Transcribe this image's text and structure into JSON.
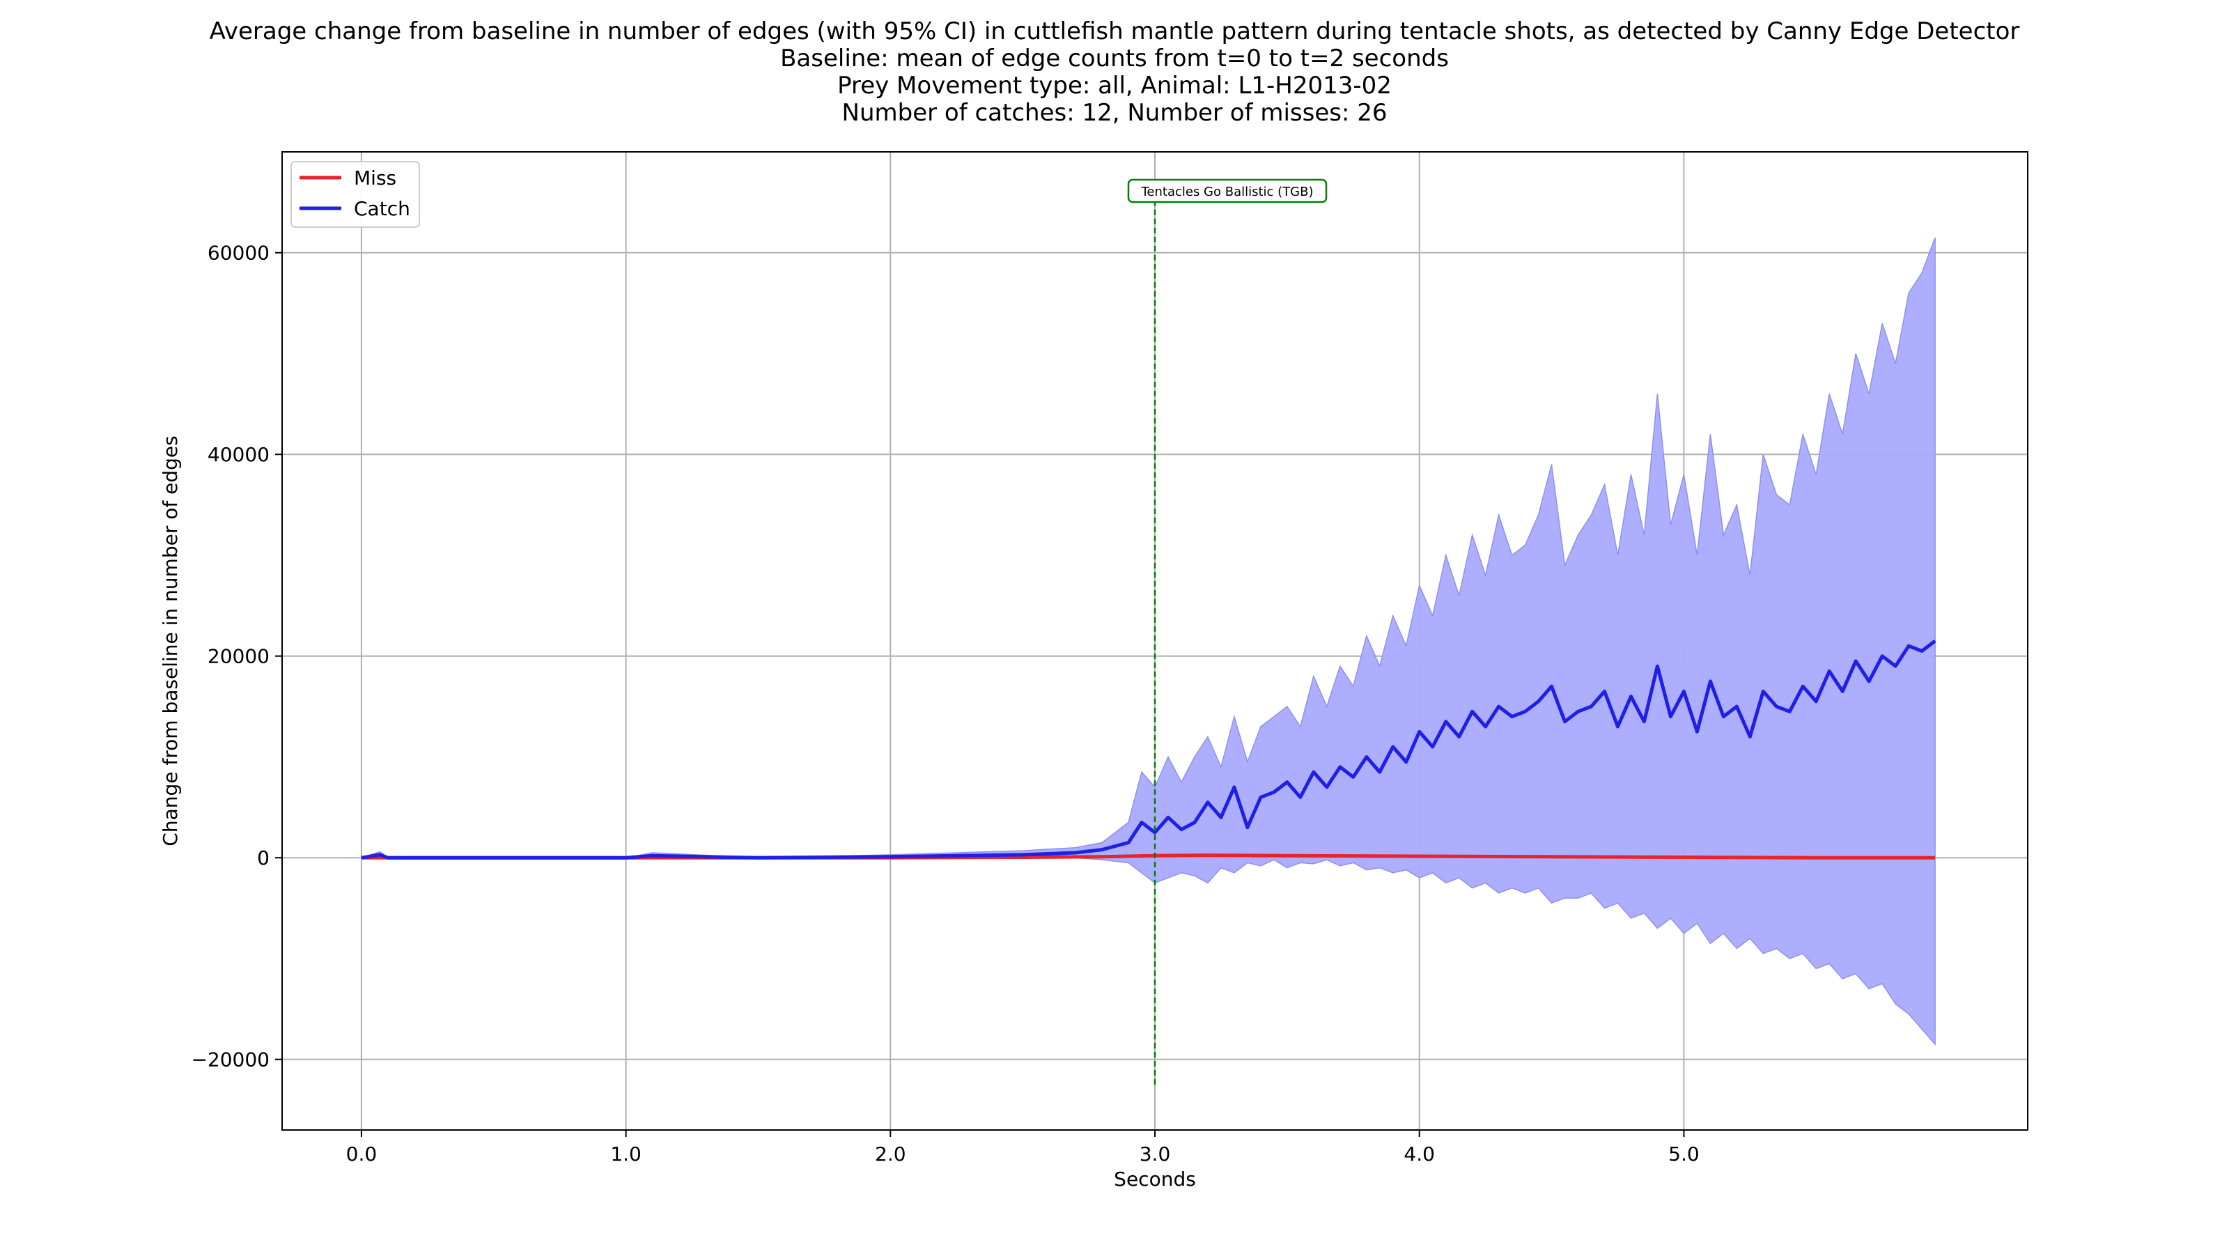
{
  "chart_data": {
    "type": "line",
    "title_lines": [
      "Average change from baseline in number of edges (with 95% CI) in cuttlefish mantle pattern during tentacle shots, as detected by Canny Edge Detector",
      "Baseline: mean of edge counts from t=0 to t=2 seconds",
      "Prey Movement type: all, Animal: L1-H2013-02",
      "Number of catches: 12, Number of misses: 26"
    ],
    "xlabel": "Seconds",
    "ylabel": "Change from baseline in number of edges",
    "xlim": [
      -0.3,
      6.3
    ],
    "ylim": [
      -27000,
      70000
    ],
    "x_ticks": [
      0,
      1,
      2,
      3,
      4,
      5
    ],
    "x_tick_labels": [
      "0.0",
      "1.0",
      "2.0",
      "3.0",
      "4.0",
      "5.0"
    ],
    "y_ticks": [
      -20000,
      0,
      20000,
      40000,
      60000
    ],
    "y_tick_labels": [
      "−20000",
      "0",
      "20000",
      "40000",
      "60000"
    ],
    "grid": true,
    "legend_position": "top-left",
    "annotation": {
      "text": "Tentacles Go Ballistic (TGB)",
      "x": 3.0,
      "line_ymin": -22500,
      "line_ymax": 66000,
      "color": "#008000"
    },
    "series": [
      {
        "name": "Miss",
        "color": "#e8232a",
        "x": [
          0,
          0.5,
          1.0,
          1.5,
          2.0,
          2.5,
          2.8,
          3.0,
          3.2,
          3.5,
          4.0,
          4.5,
          5.0,
          5.5,
          5.95
        ],
        "values": [
          0,
          0,
          0,
          0,
          0,
          50,
          100,
          200,
          250,
          200,
          150,
          100,
          50,
          0,
          0
        ]
      },
      {
        "name": "Catch",
        "color": "#1f1fe6",
        "band_color": "#aaaaff",
        "x": [
          0,
          0.07,
          0.1,
          0.5,
          1.0,
          1.1,
          1.5,
          2.0,
          2.5,
          2.7,
          2.8,
          2.9,
          2.95,
          3.0,
          3.05,
          3.1,
          3.15,
          3.2,
          3.25,
          3.3,
          3.35,
          3.4,
          3.45,
          3.5,
          3.55,
          3.6,
          3.65,
          3.7,
          3.75,
          3.8,
          3.85,
          3.9,
          3.95,
          4.0,
          4.05,
          4.1,
          4.15,
          4.2,
          4.25,
          4.3,
          4.35,
          4.4,
          4.45,
          4.5,
          4.55,
          4.6,
          4.65,
          4.7,
          4.75,
          4.8,
          4.85,
          4.9,
          4.95,
          5.0,
          5.05,
          5.1,
          5.15,
          5.2,
          5.25,
          5.3,
          5.35,
          5.4,
          5.45,
          5.5,
          5.55,
          5.6,
          5.65,
          5.7,
          5.75,
          5.8,
          5.85,
          5.9,
          5.95
        ],
        "values": [
          0,
          300,
          0,
          0,
          0,
          200,
          0,
          100,
          300,
          500,
          800,
          1500,
          3500,
          2500,
          4000,
          2800,
          3500,
          5500,
          4000,
          7000,
          3000,
          6000,
          6500,
          7500,
          6000,
          8500,
          7000,
          9000,
          8000,
          10000,
          8500,
          11000,
          9500,
          12500,
          11000,
          13500,
          12000,
          14500,
          13000,
          15000,
          14000,
          14500,
          15500,
          17000,
          13500,
          14500,
          15000,
          16500,
          13000,
          16000,
          13500,
          19000,
          14000,
          16500,
          12500,
          17500,
          14000,
          15000,
          12000,
          16500,
          15000,
          14500,
          17000,
          15500,
          18500,
          16500,
          19500,
          17500,
          20000,
          19000,
          21000,
          20500,
          21500
        ],
        "ci_lower": [
          0,
          0,
          0,
          0,
          0,
          0,
          0,
          0,
          0,
          0,
          -200,
          -500,
          -1500,
          -2500,
          -2000,
          -1500,
          -1800,
          -2500,
          -1000,
          -1500,
          -500,
          -800,
          -200,
          -1000,
          -500,
          -600,
          -200,
          -800,
          -500,
          -1200,
          -1000,
          -1500,
          -1200,
          -2000,
          -1500,
          -2500,
          -2000,
          -3000,
          -2500,
          -3500,
          -3000,
          -3500,
          -3000,
          -4500,
          -4000,
          -4000,
          -3500,
          -5000,
          -4500,
          -6000,
          -5500,
          -7000,
          -6000,
          -7500,
          -6500,
          -8500,
          -7500,
          -9000,
          -8000,
          -9500,
          -9000,
          -10000,
          -9500,
          -11000,
          -10500,
          -12000,
          -11500,
          -13000,
          -12500,
          -14500,
          -15500,
          -17000,
          -18500
        ],
        "ci_upper": [
          0,
          600,
          0,
          0,
          0,
          500,
          0,
          300,
          700,
          1000,
          1500,
          3500,
          8500,
          7000,
          10000,
          7500,
          10000,
          12000,
          9000,
          14000,
          9500,
          13000,
          14000,
          15000,
          13000,
          18000,
          15000,
          19000,
          17000,
          22000,
          19000,
          24000,
          21000,
          27000,
          24000,
          30000,
          26000,
          32000,
          28000,
          34000,
          30000,
          31000,
          34000,
          39000,
          29000,
          32000,
          34000,
          37000,
          30000,
          38000,
          32000,
          46000,
          33000,
          38000,
          30000,
          42000,
          32000,
          35000,
          28000,
          40000,
          36000,
          35000,
          42000,
          38000,
          46000,
          42000,
          50000,
          46000,
          53000,
          49000,
          56000,
          58000,
          61500
        ]
      }
    ]
  }
}
